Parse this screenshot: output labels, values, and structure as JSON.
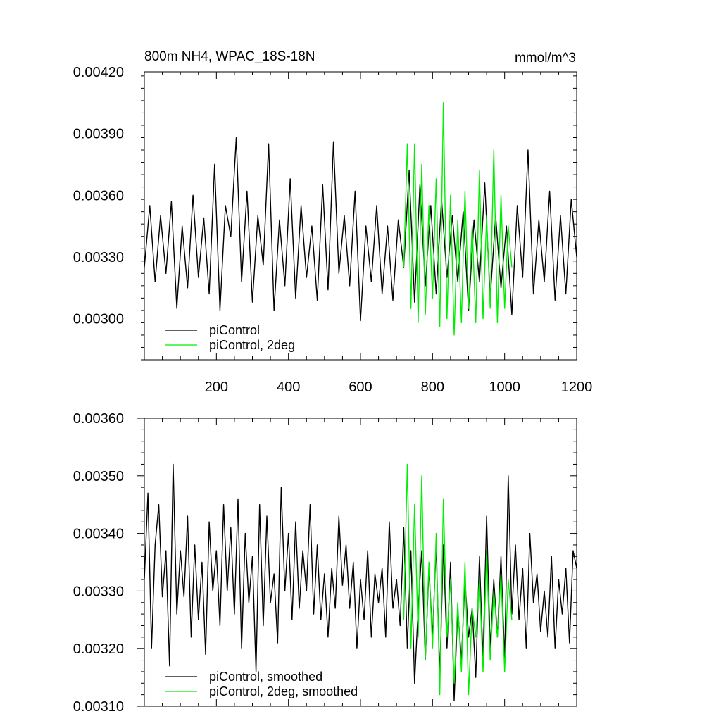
{
  "chart_data": [
    {
      "type": "line",
      "title": "800m NH4, WPAC_18S-18N",
      "units": "mmol/m^3",
      "xlim": [
        0,
        1200
      ],
      "ylim": [
        0.0028,
        0.0042
      ],
      "x_ticks": [
        200,
        400,
        600,
        800,
        1000,
        1200
      ],
      "x_tick_labels": [
        "200",
        "400",
        "600",
        "800",
        "1000",
        "1200"
      ],
      "y_ticks": [
        0.003,
        0.0033,
        0.0036,
        0.0039,
        0.0042
      ],
      "y_tick_labels": [
        "0.00300",
        "0.00330",
        "0.00360",
        "0.00390",
        "0.00420"
      ],
      "grid": false,
      "legend_position": "bottom-left",
      "series": [
        {
          "name": "piControl",
          "color": "#000000",
          "x": [
            0,
            15,
            30,
            45,
            60,
            75,
            90,
            105,
            120,
            135,
            150,
            165,
            180,
            195,
            210,
            225,
            240,
            255,
            270,
            285,
            300,
            315,
            330,
            345,
            360,
            375,
            390,
            405,
            420,
            435,
            450,
            465,
            480,
            495,
            510,
            525,
            540,
            555,
            570,
            585,
            600,
            615,
            630,
            645,
            660,
            675,
            690,
            705,
            720,
            735,
            750,
            765,
            780,
            795,
            810,
            825,
            840,
            855,
            870,
            885,
            900,
            915,
            930,
            945,
            960,
            975,
            990,
            1005,
            1020,
            1035,
            1050,
            1065,
            1080,
            1095,
            1110,
            1125,
            1140,
            1155,
            1170,
            1185,
            1200
          ],
          "y": [
            0.00325,
            0.00355,
            0.00318,
            0.0035,
            0.00322,
            0.00357,
            0.00305,
            0.00345,
            0.00315,
            0.0036,
            0.0032,
            0.00349,
            0.00312,
            0.00375,
            0.00304,
            0.00355,
            0.0034,
            0.00388,
            0.00318,
            0.00362,
            0.00308,
            0.0035,
            0.00326,
            0.00385,
            0.00304,
            0.00348,
            0.00316,
            0.00368,
            0.0031,
            0.00355,
            0.0032,
            0.00345,
            0.00309,
            0.00365,
            0.00314,
            0.00386,
            0.00322,
            0.0035,
            0.00316,
            0.00362,
            0.00299,
            0.00345,
            0.00318,
            0.00355,
            0.00312,
            0.00345,
            0.00309,
            0.00348,
            0.00325,
            0.00372,
            0.00308,
            0.00365,
            0.00316,
            0.00355,
            0.00312,
            0.00358,
            0.0032,
            0.0035,
            0.00318,
            0.00352,
            0.00304,
            0.00348,
            0.00318,
            0.00366,
            0.0031,
            0.0035,
            0.00315,
            0.00345,
            0.00302,
            0.00355,
            0.0032,
            0.00382,
            0.00312,
            0.00348,
            0.00318,
            0.00362,
            0.00309,
            0.0035,
            0.00312,
            0.00358,
            0.0033
          ]
        },
        {
          "name": "piControl, 2deg",
          "color": "#00ee00",
          "x": [
            720,
            730,
            740,
            750,
            760,
            770,
            780,
            790,
            800,
            810,
            820,
            830,
            840,
            850,
            860,
            870,
            880,
            890,
            900,
            910,
            920,
            930,
            940,
            950,
            960,
            970,
            980,
            990,
            1000,
            1010,
            1020
          ],
          "y": [
            0.00325,
            0.00385,
            0.00305,
            0.00385,
            0.00298,
            0.00375,
            0.00302,
            0.00355,
            0.0031,
            0.00368,
            0.00296,
            0.00405,
            0.003,
            0.0036,
            0.00292,
            0.00348,
            0.00298,
            0.00362,
            0.00305,
            0.00345,
            0.00298,
            0.00372,
            0.003,
            0.0035,
            0.00305,
            0.00382,
            0.00298,
            0.0036,
            0.00305,
            0.00345,
            0.00325
          ]
        }
      ]
    },
    {
      "type": "line",
      "title": "",
      "xlim": [
        0,
        1200
      ],
      "ylim": [
        0.0031,
        0.0036
      ],
      "y_ticks": [
        0.0031,
        0.0032,
        0.0033,
        0.0034,
        0.0035,
        0.0036
      ],
      "y_tick_labels": [
        "0.00310",
        "0.00320",
        "0.00330",
        "0.00340",
        "0.00350",
        "0.00360"
      ],
      "grid": false,
      "legend_position": "bottom-left",
      "series": [
        {
          "name": "piControl, smoothed",
          "color": "#000000",
          "x": [
            0,
            10,
            20,
            30,
            40,
            50,
            60,
            70,
            80,
            90,
            100,
            110,
            120,
            130,
            140,
            150,
            160,
            170,
            180,
            190,
            200,
            210,
            220,
            230,
            240,
            250,
            260,
            270,
            280,
            290,
            300,
            310,
            320,
            330,
            340,
            350,
            360,
            370,
            380,
            390,
            400,
            410,
            420,
            430,
            440,
            450,
            460,
            470,
            480,
            490,
            500,
            510,
            520,
            530,
            540,
            550,
            560,
            570,
            580,
            590,
            600,
            610,
            620,
            630,
            640,
            650,
            660,
            670,
            680,
            690,
            700,
            710,
            720,
            730,
            740,
            750,
            760,
            770,
            780,
            790,
            800,
            810,
            820,
            830,
            840,
            850,
            860,
            870,
            880,
            890,
            900,
            910,
            920,
            930,
            940,
            950,
            960,
            970,
            980,
            990,
            1000,
            1010,
            1020,
            1030,
            1040,
            1050,
            1060,
            1070,
            1080,
            1090,
            1100,
            1110,
            1120,
            1130,
            1140,
            1150,
            1160,
            1170,
            1180,
            1190,
            1200
          ],
          "y": [
            0.00332,
            0.00347,
            0.0032,
            0.00338,
            0.00345,
            0.00329,
            0.00337,
            0.00317,
            0.00352,
            0.00326,
            0.00337,
            0.00329,
            0.00343,
            0.00322,
            0.00338,
            0.00325,
            0.00335,
            0.00319,
            0.00342,
            0.0033,
            0.00337,
            0.00324,
            0.00345,
            0.0033,
            0.00341,
            0.00326,
            0.00346,
            0.0032,
            0.0034,
            0.00328,
            0.00336,
            0.00316,
            0.00345,
            0.00324,
            0.00343,
            0.00328,
            0.00333,
            0.00321,
            0.00348,
            0.0033,
            0.0034,
            0.00325,
            0.00342,
            0.00327,
            0.00337,
            0.0033,
            0.00345,
            0.00326,
            0.00338,
            0.00325,
            0.00333,
            0.00322,
            0.00334,
            0.00327,
            0.00343,
            0.00331,
            0.00338,
            0.00327,
            0.00335,
            0.0032,
            0.00332,
            0.00325,
            0.00337,
            0.00322,
            0.00333,
            0.00328,
            0.00334,
            0.00322,
            0.00342,
            0.00327,
            0.00332,
            0.00324,
            0.00341,
            0.0032,
            0.00337,
            0.00314,
            0.00327,
            0.00337,
            0.00318,
            0.00334,
            0.00322,
            0.00338,
            0.00315,
            0.00338,
            0.0032,
            0.00335,
            0.00311,
            0.00327,
            0.00318,
            0.00332,
            0.00322,
            0.00327,
            0.00315,
            0.00336,
            0.00318,
            0.00343,
            0.0032,
            0.00332,
            0.00322,
            0.00336,
            0.00318,
            0.0035,
            0.00326,
            0.00338,
            0.00325,
            0.00334,
            0.0032,
            0.0034,
            0.00328,
            0.00333,
            0.00323,
            0.0033,
            0.00322,
            0.00336,
            0.0032,
            0.00332,
            0.00326,
            0.00334,
            0.00321,
            0.00337,
            0.00334
          ]
        },
        {
          "name": "piControl, 2deg, smoothed",
          "color": "#00ee00",
          "x": [
            720,
            730,
            740,
            750,
            760,
            770,
            780,
            790,
            800,
            810,
            820,
            830,
            840,
            850,
            860,
            870,
            880,
            890,
            900,
            910,
            920,
            930,
            940,
            950,
            960,
            970,
            980,
            990,
            1000,
            1010,
            1020
          ],
          "y": [
            0.00325,
            0.00352,
            0.0032,
            0.00345,
            0.00322,
            0.0035,
            0.00318,
            0.00335,
            0.0032,
            0.0034,
            0.00312,
            0.00346,
            0.00322,
            0.00332,
            0.00314,
            0.00328,
            0.00316,
            0.00335,
            0.00312,
            0.00327,
            0.00322,
            0.00332,
            0.00316,
            0.00337,
            0.00318,
            0.0033,
            0.00322,
            0.00333,
            0.00316,
            0.00332,
            0.00325
          ]
        }
      ]
    }
  ],
  "legends": [
    {
      "entries": [
        {
          "label": "piControl",
          "color": "#000000"
        },
        {
          "label": "piControl, 2deg",
          "color": "#00ee00"
        }
      ]
    },
    {
      "entries": [
        {
          "label": "piControl, smoothed",
          "color": "#000000"
        },
        {
          "label": "piControl, 2deg, smoothed",
          "color": "#00ee00"
        }
      ]
    }
  ]
}
